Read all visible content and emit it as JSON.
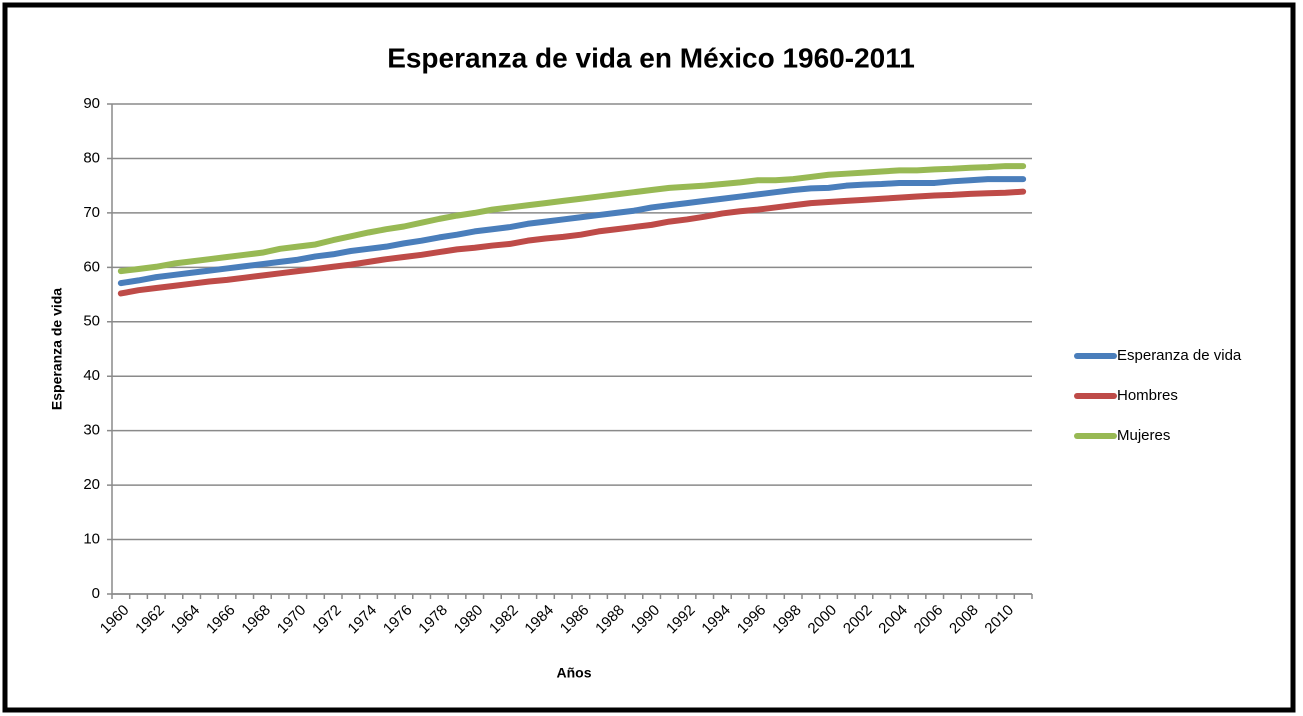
{
  "chart_data": {
    "type": "line",
    "title": "Esperanza de vida en México 1960-2011",
    "xlabel": "Años",
    "ylabel": "Esperanza de vida",
    "categories": [
      "1960",
      null,
      "1962",
      null,
      "1964",
      null,
      "1966",
      null,
      "1968",
      null,
      "1970",
      null,
      "1972",
      null,
      "1974",
      null,
      "1976",
      null,
      "1978",
      null,
      "1980",
      null,
      "1982",
      null,
      "1984",
      null,
      "1986",
      null,
      "1988",
      null,
      "1990",
      null,
      "1992",
      null,
      "1994",
      null,
      "1996",
      null,
      "1998",
      null,
      "2000",
      null,
      "2002",
      null,
      "2004",
      null,
      "2006",
      null,
      "2008",
      null,
      "2010",
      null
    ],
    "series": [
      {
        "name": "Esperanza de vida",
        "color": "#4a7ebb",
        "values": [
          57.1,
          57.6,
          58.2,
          58.6,
          59.0,
          59.4,
          59.8,
          60.2,
          60.6,
          61.0,
          61.4,
          62.0,
          62.4,
          63.0,
          63.4,
          63.8,
          64.4,
          64.9,
          65.5,
          66.0,
          66.6,
          67.0,
          67.4,
          68.0,
          68.4,
          68.8,
          69.2,
          69.6,
          70.0,
          70.4,
          71.0,
          71.4,
          71.8,
          72.2,
          72.6,
          73.0,
          73.4,
          73.8,
          74.2,
          74.5,
          74.6,
          75.0,
          75.2,
          75.3,
          75.5,
          75.5,
          75.5,
          75.8,
          76.0,
          76.2,
          76.2,
          76.2
        ]
      },
      {
        "name": "Hombres",
        "color": "#be4b48",
        "values": [
          55.2,
          55.8,
          56.2,
          56.6,
          57.0,
          57.4,
          57.7,
          58.1,
          58.5,
          58.9,
          59.3,
          59.7,
          60.1,
          60.5,
          61.0,
          61.5,
          61.9,
          62.3,
          62.8,
          63.3,
          63.6,
          64.0,
          64.3,
          64.9,
          65.3,
          65.6,
          66.0,
          66.6,
          67.0,
          67.4,
          67.8,
          68.4,
          68.8,
          69.3,
          69.9,
          70.3,
          70.6,
          71.0,
          71.4,
          71.8,
          72.0,
          72.2,
          72.4,
          72.6,
          72.8,
          73.0,
          73.2,
          73.3,
          73.5,
          73.6,
          73.7,
          73.9
        ]
      },
      {
        "name": "Mujeres",
        "color": "#98b954",
        "values": [
          59.3,
          59.7,
          60.1,
          60.7,
          61.1,
          61.5,
          61.9,
          62.3,
          62.7,
          63.4,
          63.8,
          64.2,
          65.0,
          65.7,
          66.4,
          67.0,
          67.5,
          68.2,
          68.9,
          69.5,
          70.0,
          70.6,
          71.0,
          71.4,
          71.8,
          72.2,
          72.6,
          73.0,
          73.4,
          73.8,
          74.2,
          74.6,
          74.8,
          75.0,
          75.3,
          75.6,
          76.0,
          76.0,
          76.2,
          76.6,
          77.0,
          77.2,
          77.4,
          77.6,
          77.8,
          77.8,
          78.0,
          78.1,
          78.3,
          78.4,
          78.6,
          78.6
        ]
      }
    ],
    "ylim": [
      0,
      90
    ],
    "yticks": [
      0,
      10,
      20,
      30,
      40,
      50,
      60,
      70,
      80,
      90
    ],
    "grid": true,
    "legend": "right"
  }
}
